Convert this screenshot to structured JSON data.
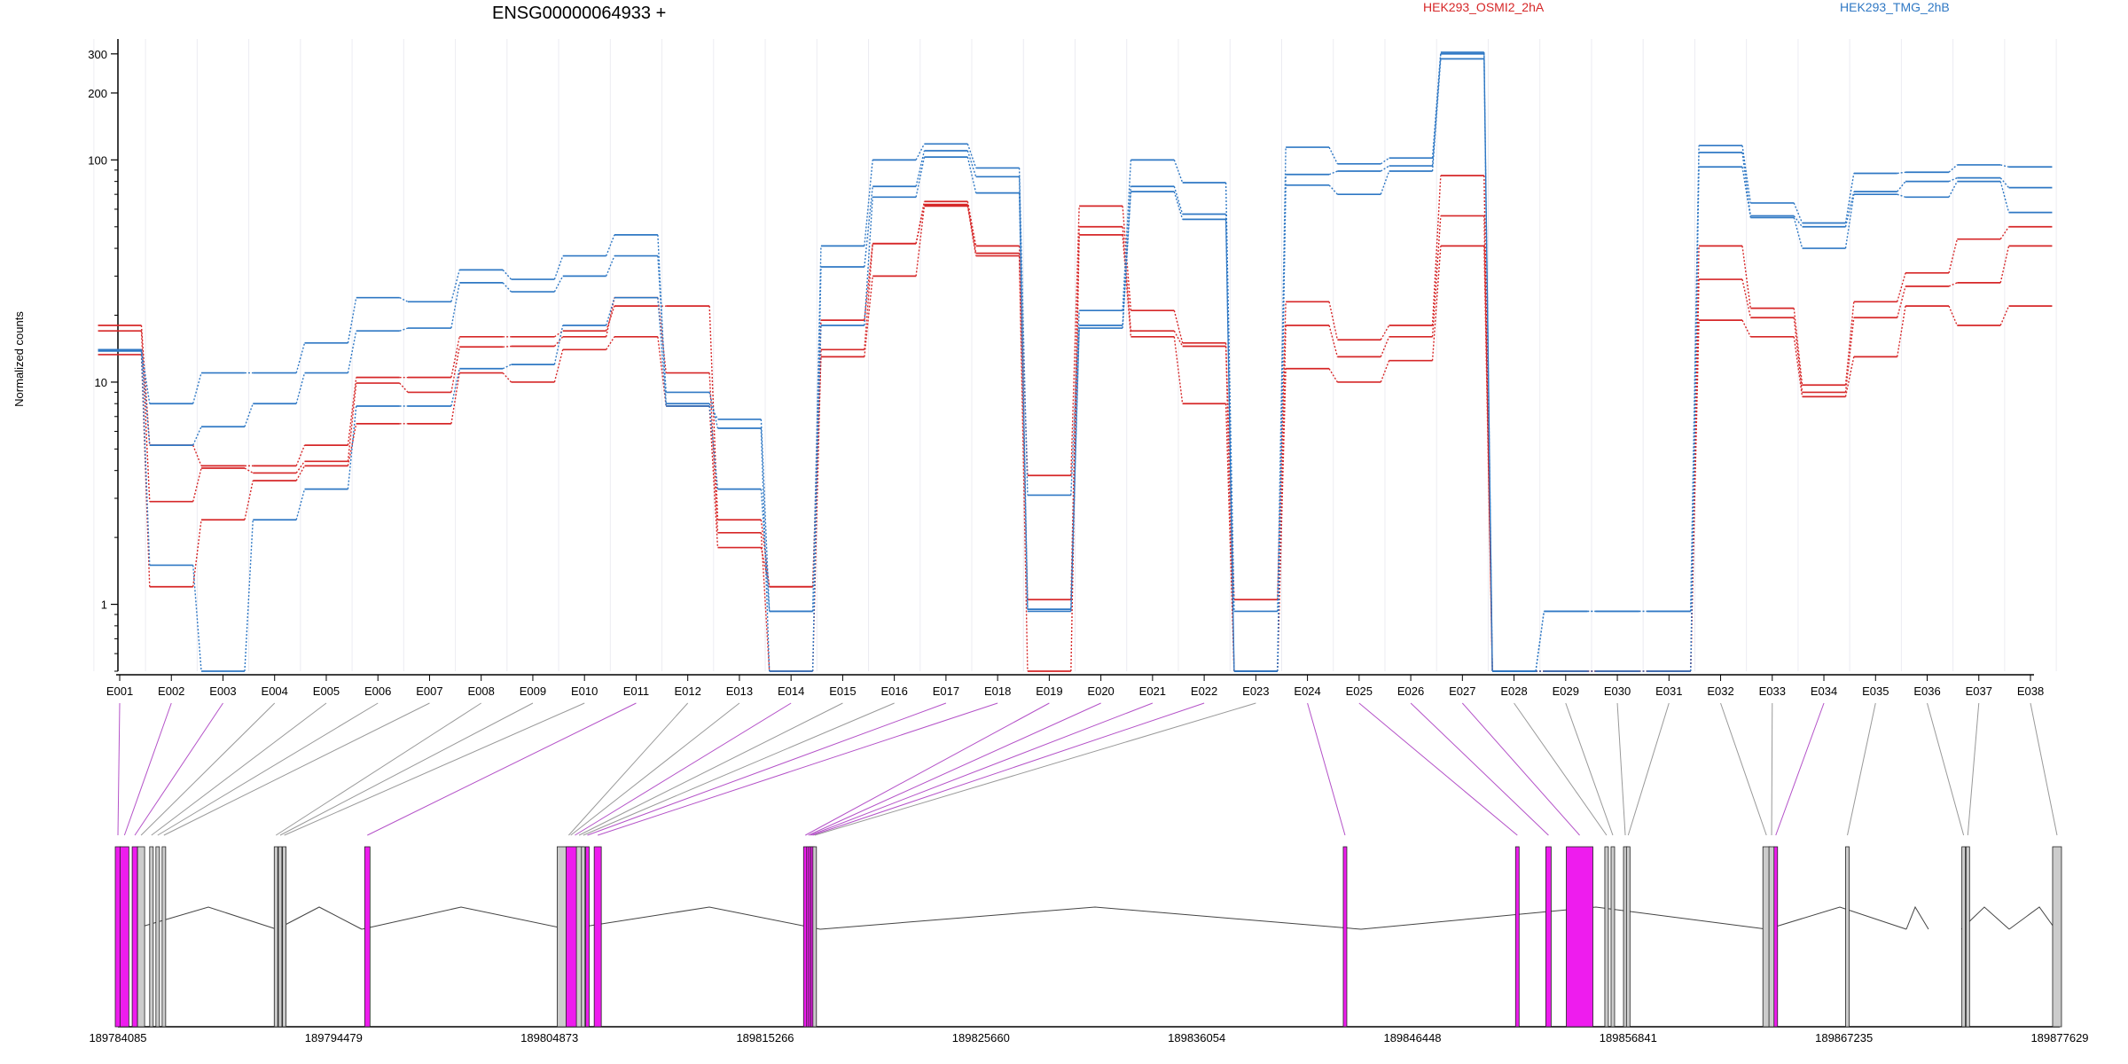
{
  "chart_data": {
    "type": "line",
    "title": "ENSG00000064933 +",
    "ylabel": "Normalized counts",
    "yscale": "log",
    "ylim": [
      0.5,
      350
    ],
    "ytick_labels": [
      "1",
      "10",
      "100",
      "200",
      "300"
    ],
    "ytick_values": [
      1,
      10,
      100,
      200,
      300
    ],
    "grid": "vertical, light",
    "legend": "top, inline text",
    "categories": [
      "E001",
      "E002",
      "E003",
      "E004",
      "E005",
      "E006",
      "E007",
      "E008",
      "E009",
      "E010",
      "E011",
      "E012",
      "E013",
      "E014",
      "E015",
      "E016",
      "E017",
      "E018",
      "E019",
      "E020",
      "E021",
      "E022",
      "E023",
      "E024",
      "E025",
      "E026",
      "E027",
      "E028",
      "E029",
      "E030",
      "E031",
      "E032",
      "E033",
      "E034",
      "E035",
      "E036",
      "E037",
      "E038"
    ],
    "conditions": [
      {
        "name": "HEK293_OSMI2_2hA",
        "color": "#d62728"
      },
      {
        "name": "HEK293_TMG_2hB",
        "color": "#2f78c4"
      }
    ],
    "series": [
      {
        "condition": 0,
        "color": "#d62728",
        "values": [
          18,
          5.2,
          4.2,
          4.2,
          5.2,
          10.5,
          10.5,
          16,
          16,
          17,
          22,
          22,
          2.4,
          1.2,
          19,
          42,
          65,
          41,
          3.8,
          62,
          21,
          15,
          1.05,
          23,
          15.5,
          18,
          85,
          0.5,
          0.5,
          0.5,
          0.5,
          41,
          21.5,
          9.7,
          23,
          31,
          44,
          50
        ]
      },
      {
        "condition": 0,
        "color": "#d62728",
        "values": [
          17,
          2.9,
          4.1,
          3.9,
          4.4,
          9.9,
          9.0,
          14.4,
          14.5,
          16,
          24,
          11,
          2.1,
          0.5,
          14,
          42,
          63,
          38,
          1.05,
          50,
          17,
          14.5,
          0.5,
          18,
          13,
          16,
          56,
          0.5,
          0.5,
          0.5,
          0.5,
          29,
          19.5,
          9,
          19.5,
          27,
          28,
          41
        ]
      },
      {
        "condition": 0,
        "color": "#d62728",
        "values": [
          13.3,
          1.2,
          2.4,
          3.6,
          4.2,
          6.5,
          6.5,
          11,
          10,
          14,
          16,
          7.8,
          1.8,
          1.2,
          13,
          30,
          62,
          37,
          0.5,
          46,
          16,
          8,
          0.5,
          11.5,
          10,
          12.5,
          41,
          0.5,
          0.5,
          0.5,
          0.5,
          19,
          16,
          8.6,
          13,
          22,
          18,
          22
        ]
      },
      {
        "condition": 1,
        "color": "#2f78c4",
        "values": [
          14,
          8,
          11,
          11,
          15,
          24,
          23,
          32,
          29,
          37,
          46,
          8,
          6.8,
          0.93,
          41,
          100,
          118,
          92,
          3.1,
          21,
          100,
          79,
          0.93,
          114,
          96,
          102,
          305,
          0.5,
          0.93,
          0.93,
          0.93,
          116,
          64,
          52,
          87,
          88,
          95,
          93
        ]
      },
      {
        "condition": 1,
        "color": "#2f78c4",
        "values": [
          14,
          5.2,
          6.3,
          8,
          11,
          17,
          17.5,
          28,
          25.5,
          30,
          37,
          9,
          6.2,
          0.5,
          33,
          76,
          110,
          84,
          0.95,
          18,
          76,
          57,
          0.5,
          86,
          89,
          94,
          300,
          0.5,
          0.93,
          0.93,
          0.93,
          108,
          56,
          50,
          72,
          80,
          83,
          75
        ]
      },
      {
        "condition": 1,
        "color": "#2f78c4",
        "values": [
          13.8,
          1.5,
          0.5,
          2.4,
          3.3,
          7.8,
          7.8,
          11.5,
          12,
          18,
          24,
          7.8,
          3.3,
          0.93,
          18,
          68,
          103,
          71,
          0.93,
          17.5,
          72,
          54,
          0.5,
          77,
          70,
          89,
          285,
          0.5,
          0.5,
          0.5,
          0.5,
          93,
          55,
          40,
          70,
          68,
          80,
          58
        ]
      }
    ],
    "gene_coordinates": [
      "189784085",
      "189794479",
      "189804873",
      "189815266",
      "189825660",
      "189836054",
      "189846448",
      "189856841",
      "189867235",
      "189877629"
    ],
    "exon_colors": [
      "magenta",
      "magenta",
      "magenta",
      "grey",
      "grey",
      "grey",
      "grey",
      "grey",
      "grey",
      "grey",
      "magenta",
      "grey",
      "grey",
      "magenta",
      "grey",
      "grey",
      "magenta",
      "magenta",
      "magenta",
      "magenta",
      "magenta",
      "magenta",
      "grey",
      "magenta",
      "magenta",
      "magenta",
      "magenta",
      "grey",
      "grey",
      "grey",
      "grey",
      "grey",
      "grey",
      "magenta",
      "grey",
      "grey",
      "grey",
      "grey"
    ],
    "exon_color_values": {
      "magenta": "#ee1cee",
      "magenta_line": "#b452c8",
      "grey": "#cccccc",
      "grey_line": "#999999"
    }
  }
}
